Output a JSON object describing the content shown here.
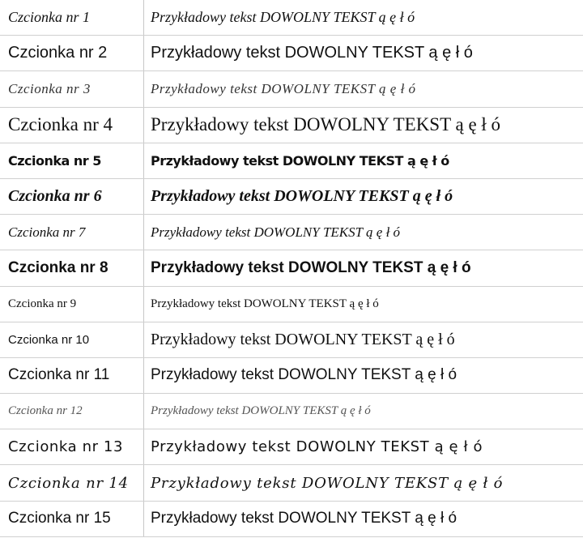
{
  "table": {
    "rows": [
      [
        "Czcionka nr 1",
        "Przykładowy tekst DOWOLNY TEKST ą ę ł ó"
      ],
      [
        "Czcionka nr 2",
        "Przykładowy tekst DOWOLNY TEKST ą ę ł ó"
      ],
      [
        "Czcionka nr 3",
        "Przykładowy tekst DOWOLNY TEKST ą ę ł ó"
      ],
      [
        "Czcionka nr 4",
        "Przykładowy tekst DOWOLNY TEKST ą ę ł ó"
      ],
      [
        "Czcionka nr 5",
        "Przykładowy tekst DOWOLNY TEKST ą ę ł ó"
      ],
      [
        "Czcionka nr 6",
        "Przykładowy tekst DOWOLNY TEKST ą ę ł ó"
      ],
      [
        "Czcionka nr 7",
        "Przykładowy tekst DOWOLNY TEKST ą ę ł ó"
      ],
      [
        "Czcionka nr 8",
        "Przykładowy tekst DOWOLNY TEKST ą ę ł ó"
      ],
      [
        "Czcionka nr 9",
        "Przykładowy tekst DOWOLNY TEKST ą ę ł ó"
      ],
      [
        "Czcionka nr 10",
        "Przykładowy tekst DOWOLNY TEKST ą ę ł ó"
      ],
      [
        "Czcionka nr 11",
        "Przykładowy tekst DOWOLNY TEKST ą ę ł ó"
      ],
      [
        "Czcionka nr 12",
        "Przykładowy tekst DOWOLNY TEKST ą ę ł ó"
      ],
      [
        "Czcionka nr 13",
        "Przykładowy tekst DOWOLNY TEKST ą ę ł ó"
      ],
      [
        "Czcionka nr 14",
        "Przykładowy tekst DOWOLNY TEKST ą ę ł ó"
      ],
      [
        "Czcionka nr 15",
        "Przykładowy tekst DOWOLNY TEKST ą ę ł ó"
      ]
    ]
  }
}
